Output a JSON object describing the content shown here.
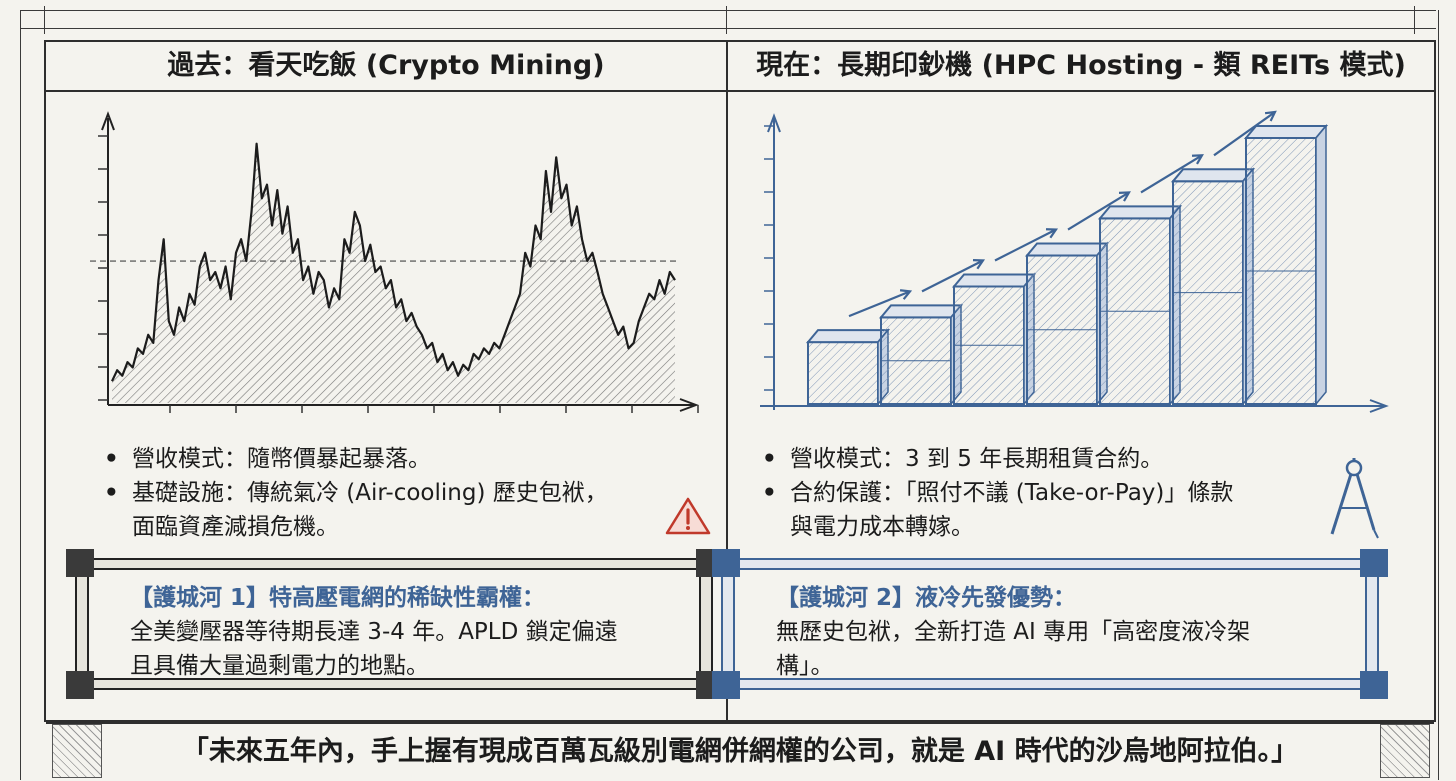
{
  "left_panel": {
    "title": "過去：看天吃飯 (Crypto Mining)",
    "bullets": [
      "營收模式：隨幣價暴起暴落。",
      "基礎設施：傳統氣冷 (Air-cooling) 歷史包袱，",
      "面臨資產減損危機。"
    ],
    "warning_icon": "warning-triangle-icon"
  },
  "right_panel": {
    "title": "現在：長期印鈔機 (HPC Hosting - 類 REITs 模式)",
    "bullets": [
      "營收模式：3 到 5 年長期租賃合約。",
      "合約保護：「照付不議 (Take-or-Pay)」條款",
      "與電力成本轉嫁。"
    ],
    "compass_icon": "drafting-compass-icon"
  },
  "moat_left": {
    "title": "【護城河 1】特高壓電網的稀缺性霸權：",
    "lines": [
      "全美變壓器等待期長達 3-4 年。APLD 鎖定偏遠",
      "且具備大量過剩電力的地點。"
    ]
  },
  "moat_right": {
    "title": "【護城河 2】液冷先發優勢：",
    "lines": [
      "無歷史包袱，全新打造 AI 專用「高密度液冷架",
      "構」。"
    ]
  },
  "quote": "「未來五年內，手上握有現成百萬瓦級別電網併網權的公司，就是 AI 時代的沙烏地阿拉伯。」",
  "colors": {
    "ink": "#1c1c1c",
    "blue": "#3e6496",
    "paper": "#f4f3ee",
    "warning": "#c0392b"
  },
  "chart_data": [
    {
      "type": "area",
      "values": [
        0.08,
        0.12,
        0.1,
        0.15,
        0.13,
        0.2,
        0.18,
        0.25,
        0.22,
        0.45,
        0.6,
        0.3,
        0.25,
        0.35,
        0.3,
        0.4,
        0.36,
        0.5,
        0.55,
        0.45,
        0.48,
        0.42,
        0.5,
        0.38,
        0.55,
        0.6,
        0.52,
        0.7,
        0.95,
        0.75,
        0.8,
        0.65,
        0.78,
        0.62,
        0.72,
        0.55,
        0.6,
        0.45,
        0.5,
        0.4,
        0.48,
        0.45,
        0.35,
        0.42,
        0.38,
        0.6,
        0.55,
        0.7,
        0.65,
        0.52,
        0.58,
        0.48,
        0.5,
        0.42,
        0.45,
        0.35,
        0.38,
        0.3,
        0.33,
        0.28,
        0.25,
        0.2,
        0.22,
        0.15,
        0.18,
        0.12,
        0.15,
        0.1,
        0.14,
        0.12,
        0.18,
        0.16,
        0.2,
        0.18,
        0.22,
        0.2,
        0.25,
        0.3,
        0.35,
        0.4,
        0.55,
        0.5,
        0.65,
        0.6,
        0.85,
        0.7,
        0.9,
        0.75,
        0.8,
        0.65,
        0.72,
        0.6,
        0.52,
        0.55,
        0.48,
        0.4,
        0.35,
        0.3,
        0.25,
        0.28,
        0.2,
        0.22,
        0.3,
        0.35,
        0.4,
        0.38,
        0.45,
        0.4,
        0.48,
        0.45
      ],
      "reference_line": 0.52
    },
    {
      "type": "bar",
      "values": [
        1,
        1.4,
        1.9,
        2.4,
        3.0,
        3.6,
        4.3
      ]
    }
  ]
}
